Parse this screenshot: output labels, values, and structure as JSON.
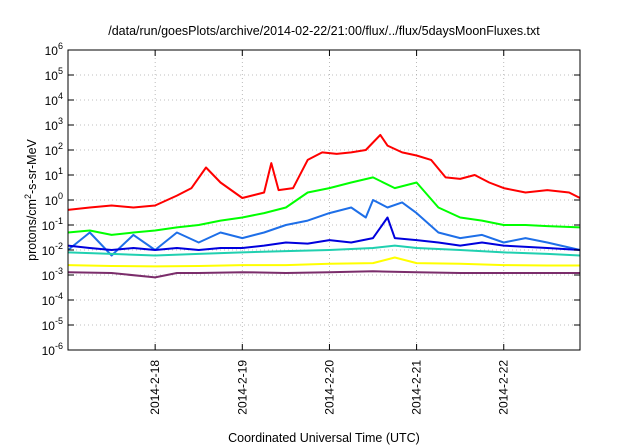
{
  "chart_data": {
    "type": "line",
    "title": "/data/run/goesPlots/archive/2014-02-22/21:00/flux/../flux/5daysMoonFluxes.txt",
    "xlabel": "Coordinated Universal Time (UTC)",
    "ylabel": {
      "pre": "protons/cm",
      "sup": "2",
      "post": "-s-sr-MeV"
    },
    "yscale": "log",
    "ylim_exp": [
      -6,
      6
    ],
    "y_ticks": [
      {
        "base": "10",
        "exp": "-6",
        "v": -6
      },
      {
        "base": "10",
        "exp": "-5",
        "v": -5
      },
      {
        "base": "10",
        "exp": "-4",
        "v": -4
      },
      {
        "base": "10",
        "exp": "-3",
        "v": -3
      },
      {
        "base": "10",
        "exp": "-2",
        "v": -2
      },
      {
        "base": "10",
        "exp": "-1",
        "v": -1
      },
      {
        "base": "10",
        "exp": "0",
        "v": 0
      },
      {
        "base": "10",
        "exp": "1",
        "v": 1
      },
      {
        "base": "10",
        "exp": "2",
        "v": 2
      },
      {
        "base": "10",
        "exp": "3",
        "v": 3
      },
      {
        "base": "10",
        "exp": "4",
        "v": 4
      },
      {
        "base": "10",
        "exp": "5",
        "v": 5
      },
      {
        "base": "10",
        "exp": "6",
        "v": 6
      }
    ],
    "xlim": [
      "2014-02-17 00:00",
      "2014-02-22 21:00"
    ],
    "x_ticks": [
      {
        "label": "2014-2-18",
        "t": "2014-02-18 00:00"
      },
      {
        "label": "2014-2-19",
        "t": "2014-02-19 00:00"
      },
      {
        "label": "2014-2-20",
        "t": "2014-02-20 00:00"
      },
      {
        "label": "2014-2-21",
        "t": "2014-02-21 00:00"
      },
      {
        "label": "2014-2-22",
        "t": "2014-02-22 00:00"
      }
    ],
    "grid": true,
    "series": [
      {
        "color": "#ff0000",
        "points": [
          [
            "2014-02-17 00:00",
            0.4
          ],
          [
            "2014-02-17 06:00",
            0.5
          ],
          [
            "2014-02-17 12:00",
            0.6
          ],
          [
            "2014-02-17 18:00",
            0.5
          ],
          [
            "2014-02-18 00:00",
            0.6
          ],
          [
            "2014-02-18 06:00",
            1.5
          ],
          [
            "2014-02-18 10:00",
            3
          ],
          [
            "2014-02-18 14:00",
            20
          ],
          [
            "2014-02-18 18:00",
            5
          ],
          [
            "2014-02-19 00:00",
            1.2
          ],
          [
            "2014-02-19 06:00",
            2
          ],
          [
            "2014-02-19 08:00",
            30
          ],
          [
            "2014-02-19 10:00",
            2.5
          ],
          [
            "2014-02-19 14:00",
            3
          ],
          [
            "2014-02-19 18:00",
            40
          ],
          [
            "2014-02-19 22:00",
            80
          ],
          [
            "2014-02-20 02:00",
            70
          ],
          [
            "2014-02-20 06:00",
            80
          ],
          [
            "2014-02-20 10:00",
            100
          ],
          [
            "2014-02-20 12:00",
            200
          ],
          [
            "2014-02-20 14:00",
            400
          ],
          [
            "2014-02-20 16:00",
            150
          ],
          [
            "2014-02-20 20:00",
            80
          ],
          [
            "2014-02-21 00:00",
            60
          ],
          [
            "2014-02-21 04:00",
            40
          ],
          [
            "2014-02-21 08:00",
            8
          ],
          [
            "2014-02-21 12:00",
            7
          ],
          [
            "2014-02-21 16:00",
            10
          ],
          [
            "2014-02-21 20:00",
            5
          ],
          [
            "2014-02-22 00:00",
            3
          ],
          [
            "2014-02-22 06:00",
            2
          ],
          [
            "2014-02-22 12:00",
            2.5
          ],
          [
            "2014-02-22 18:00",
            2
          ],
          [
            "2014-02-22 21:00",
            1.2
          ]
        ]
      },
      {
        "color": "#00ff00",
        "points": [
          [
            "2014-02-17 00:00",
            0.05
          ],
          [
            "2014-02-17 06:00",
            0.06
          ],
          [
            "2014-02-17 12:00",
            0.04
          ],
          [
            "2014-02-17 18:00",
            0.05
          ],
          [
            "2014-02-18 00:00",
            0.06
          ],
          [
            "2014-02-18 06:00",
            0.08
          ],
          [
            "2014-02-18 12:00",
            0.1
          ],
          [
            "2014-02-18 18:00",
            0.15
          ],
          [
            "2014-02-19 00:00",
            0.2
          ],
          [
            "2014-02-19 06:00",
            0.3
          ],
          [
            "2014-02-19 12:00",
            0.5
          ],
          [
            "2014-02-19 18:00",
            2
          ],
          [
            "2014-02-20 00:00",
            3
          ],
          [
            "2014-02-20 06:00",
            5
          ],
          [
            "2014-02-20 12:00",
            8
          ],
          [
            "2014-02-20 18:00",
            3
          ],
          [
            "2014-02-21 00:00",
            5
          ],
          [
            "2014-02-21 06:00",
            0.5
          ],
          [
            "2014-02-21 12:00",
            0.2
          ],
          [
            "2014-02-21 18:00",
            0.15
          ],
          [
            "2014-02-22 00:00",
            0.1
          ],
          [
            "2014-02-22 06:00",
            0.1
          ],
          [
            "2014-02-22 12:00",
            0.09
          ],
          [
            "2014-02-22 21:00",
            0.08
          ]
        ]
      },
      {
        "color": "#1e6fe8",
        "points": [
          [
            "2014-02-17 00:00",
            0.01
          ],
          [
            "2014-02-17 06:00",
            0.05
          ],
          [
            "2014-02-17 12:00",
            0.006
          ],
          [
            "2014-02-17 18:00",
            0.04
          ],
          [
            "2014-02-18 00:00",
            0.01
          ],
          [
            "2014-02-18 06:00",
            0.05
          ],
          [
            "2014-02-18 12:00",
            0.02
          ],
          [
            "2014-02-18 18:00",
            0.05
          ],
          [
            "2014-02-19 00:00",
            0.03
          ],
          [
            "2014-02-19 06:00",
            0.05
          ],
          [
            "2014-02-19 12:00",
            0.1
          ],
          [
            "2014-02-19 18:00",
            0.15
          ],
          [
            "2014-02-20 00:00",
            0.3
          ],
          [
            "2014-02-20 06:00",
            0.5
          ],
          [
            "2014-02-20 10:00",
            0.2
          ],
          [
            "2014-02-20 12:00",
            1
          ],
          [
            "2014-02-20 16:00",
            0.5
          ],
          [
            "2014-02-20 20:00",
            0.8
          ],
          [
            "2014-02-21 00:00",
            0.3
          ],
          [
            "2014-02-21 06:00",
            0.05
          ],
          [
            "2014-02-21 12:00",
            0.03
          ],
          [
            "2014-02-21 18:00",
            0.04
          ],
          [
            "2014-02-22 00:00",
            0.02
          ],
          [
            "2014-02-22 06:00",
            0.03
          ],
          [
            "2014-02-22 12:00",
            0.02
          ],
          [
            "2014-02-22 21:00",
            0.01
          ]
        ]
      },
      {
        "color": "#0000dd",
        "points": [
          [
            "2014-02-17 00:00",
            0.015
          ],
          [
            "2014-02-17 06:00",
            0.012
          ],
          [
            "2014-02-17 12:00",
            0.01
          ],
          [
            "2014-02-17 18:00",
            0.012
          ],
          [
            "2014-02-18 00:00",
            0.01
          ],
          [
            "2014-02-18 06:00",
            0.012
          ],
          [
            "2014-02-18 12:00",
            0.01
          ],
          [
            "2014-02-18 18:00",
            0.012
          ],
          [
            "2014-02-19 00:00",
            0.012
          ],
          [
            "2014-02-19 06:00",
            0.015
          ],
          [
            "2014-02-19 12:00",
            0.02
          ],
          [
            "2014-02-19 18:00",
            0.018
          ],
          [
            "2014-02-20 00:00",
            0.025
          ],
          [
            "2014-02-20 06:00",
            0.02
          ],
          [
            "2014-02-20 12:00",
            0.03
          ],
          [
            "2014-02-20 16:00",
            0.2
          ],
          [
            "2014-02-20 18:00",
            0.03
          ],
          [
            "2014-02-21 00:00",
            0.025
          ],
          [
            "2014-02-21 06:00",
            0.02
          ],
          [
            "2014-02-21 12:00",
            0.015
          ],
          [
            "2014-02-21 18:00",
            0.02
          ],
          [
            "2014-02-22 00:00",
            0.015
          ],
          [
            "2014-02-22 12:00",
            0.012
          ],
          [
            "2014-02-22 21:00",
            0.01
          ]
        ]
      },
      {
        "color": "#20d0b0",
        "points": [
          [
            "2014-02-17 00:00",
            0.008
          ],
          [
            "2014-02-17 12:00",
            0.007
          ],
          [
            "2014-02-18 00:00",
            0.006
          ],
          [
            "2014-02-18 12:00",
            0.007
          ],
          [
            "2014-02-19 00:00",
            0.008
          ],
          [
            "2014-02-19 12:00",
            0.009
          ],
          [
            "2014-02-20 00:00",
            0.01
          ],
          [
            "2014-02-20 12:00",
            0.012
          ],
          [
            "2014-02-20 18:00",
            0.015
          ],
          [
            "2014-02-21 00:00",
            0.012
          ],
          [
            "2014-02-21 12:00",
            0.01
          ],
          [
            "2014-02-22 00:00",
            0.008
          ],
          [
            "2014-02-22 12:00",
            0.007
          ],
          [
            "2014-02-22 21:00",
            0.006
          ]
        ]
      },
      {
        "color": "#ffff00",
        "points": [
          [
            "2014-02-17 00:00",
            0.0025
          ],
          [
            "2014-02-17 12:00",
            0.0023
          ],
          [
            "2014-02-18 00:00",
            0.0022
          ],
          [
            "2014-02-18 12:00",
            0.0023
          ],
          [
            "2014-02-19 00:00",
            0.0025
          ],
          [
            "2014-02-19 12:00",
            0.0025
          ],
          [
            "2014-02-20 00:00",
            0.0028
          ],
          [
            "2014-02-20 12:00",
            0.003
          ],
          [
            "2014-02-20 18:00",
            0.005
          ],
          [
            "2014-02-21 00:00",
            0.003
          ],
          [
            "2014-02-21 12:00",
            0.0028
          ],
          [
            "2014-02-22 00:00",
            0.0025
          ],
          [
            "2014-02-22 12:00",
            0.0024
          ],
          [
            "2014-02-22 21:00",
            0.0024
          ]
        ]
      },
      {
        "color": "#7b2d6b",
        "points": [
          [
            "2014-02-17 00:00",
            0.0013
          ],
          [
            "2014-02-17 12:00",
            0.0012
          ],
          [
            "2014-02-18 00:00",
            0.0008
          ],
          [
            "2014-02-18 06:00",
            0.0012
          ],
          [
            "2014-02-18 12:00",
            0.0012
          ],
          [
            "2014-02-19 00:00",
            0.0013
          ],
          [
            "2014-02-19 12:00",
            0.0012
          ],
          [
            "2014-02-20 00:00",
            0.0013
          ],
          [
            "2014-02-20 12:00",
            0.0014
          ],
          [
            "2014-02-21 00:00",
            0.0013
          ],
          [
            "2014-02-21 12:00",
            0.0012
          ],
          [
            "2014-02-22 00:00",
            0.0012
          ],
          [
            "2014-02-22 12:00",
            0.0012
          ],
          [
            "2014-02-22 21:00",
            0.0012
          ]
        ]
      }
    ]
  }
}
